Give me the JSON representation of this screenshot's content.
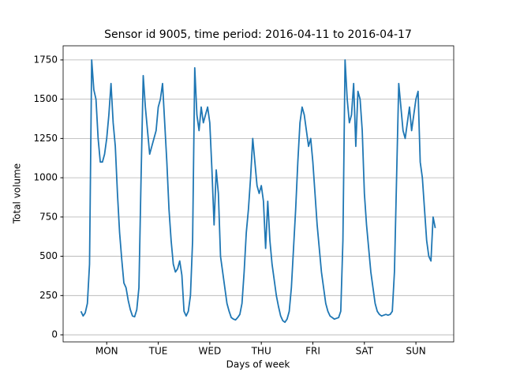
{
  "chart_data": {
    "type": "line",
    "title": "Sensor id 9005, time period: 2016-04-11 to 2016-04-17",
    "x_label": "Days of week",
    "y_label": "Total volume",
    "x": [
      0,
      1,
      2,
      3,
      4,
      5,
      6,
      7,
      8,
      9,
      10,
      11,
      12,
      13,
      14,
      15,
      16,
      17,
      18,
      19,
      20,
      21,
      22,
      23,
      24,
      25,
      26,
      27,
      28,
      29,
      30,
      31,
      32,
      33,
      34,
      35,
      36,
      37,
      38,
      39,
      40,
      41,
      42,
      43,
      44,
      45,
      46,
      47,
      48,
      49,
      50,
      51,
      52,
      53,
      54,
      55,
      56,
      57,
      58,
      59,
      60,
      61,
      62,
      63,
      64,
      65,
      66,
      67,
      68,
      69,
      70,
      71,
      72,
      73,
      74,
      75,
      76,
      77,
      78,
      79,
      80,
      81,
      82,
      83,
      84,
      85,
      86,
      87,
      88,
      89,
      90,
      91,
      92,
      93,
      94,
      95,
      96,
      97,
      98,
      99,
      100,
      101,
      102,
      103,
      104,
      105,
      106,
      107,
      108,
      109,
      110,
      111,
      112,
      113,
      114,
      115,
      116,
      117,
      118,
      119,
      120,
      121,
      122,
      123,
      124,
      125,
      126,
      127,
      128,
      129,
      130,
      131,
      132,
      133,
      134,
      135,
      136,
      137,
      138,
      139,
      140,
      141,
      142,
      143,
      144,
      145,
      146,
      147,
      148,
      149,
      150,
      151,
      152,
      153,
      154,
      155,
      156,
      157,
      158,
      159,
      160,
      161,
      162,
      163,
      164,
      165
    ],
    "series": [
      {
        "name": "Total volume",
        "color": "#1f77b4",
        "values": [
          150,
          120,
          140,
          200,
          450,
          1750,
          1560,
          1500,
          1250,
          1100,
          1100,
          1150,
          1250,
          1400,
          1600,
          1350,
          1200,
          900,
          650,
          480,
          330,
          300,
          220,
          160,
          120,
          115,
          160,
          300,
          1000,
          1650,
          1450,
          1300,
          1150,
          1200,
          1250,
          1300,
          1450,
          1500,
          1600,
          1350,
          1100,
          800,
          600,
          450,
          400,
          420,
          470,
          380,
          150,
          120,
          150,
          250,
          600,
          1700,
          1400,
          1300,
          1450,
          1350,
          1400,
          1450,
          1350,
          1050,
          700,
          1050,
          900,
          500,
          400,
          300,
          200,
          150,
          110,
          100,
          95,
          110,
          130,
          200,
          400,
          650,
          800,
          1000,
          1250,
          1100,
          950,
          900,
          950,
          850,
          550,
          850,
          600,
          450,
          350,
          250,
          180,
          120,
          90,
          80,
          100,
          150,
          300,
          550,
          800,
          1100,
          1350,
          1450,
          1400,
          1300,
          1200,
          1250,
          1100,
          900,
          700,
          550,
          400,
          300,
          200,
          150,
          120,
          110,
          100,
          105,
          110,
          150,
          600,
          1750,
          1500,
          1350,
          1400,
          1600,
          1200,
          1550,
          1500,
          1300,
          900,
          700,
          550,
          400,
          300,
          200,
          150,
          130,
          120,
          125,
          130,
          125,
          130,
          150,
          400,
          1000,
          1600,
          1450,
          1300,
          1250,
          1350,
          1450,
          1300,
          1400,
          1500,
          1550,
          1100,
          1000,
          800,
          600,
          500,
          470,
          750,
          680
        ]
      }
    ],
    "xlim": [
      -8.3,
      173.6
    ],
    "xticks": [
      {
        "value": 12,
        "label": "MON"
      },
      {
        "value": 36,
        "label": "TUE"
      },
      {
        "value": 60,
        "label": "WED"
      },
      {
        "value": 84,
        "label": "THU"
      },
      {
        "value": 108,
        "label": "FRI"
      },
      {
        "value": 132,
        "label": "SAT"
      },
      {
        "value": 156,
        "label": "SUN"
      }
    ],
    "ylim": [
      -45,
      1840
    ],
    "yticks": [
      0,
      250,
      500,
      750,
      1000,
      1250,
      1500,
      1750
    ],
    "grid": "y"
  }
}
